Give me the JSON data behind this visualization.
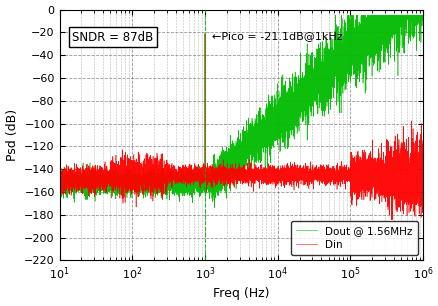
{
  "title": "",
  "xlabel": "Freq (Hz)",
  "ylabel": "Psd (dB)",
  "xlim_log": [
    10,
    1000000
  ],
  "ylim": [
    -220,
    0
  ],
  "yticks": [
    0,
    -20,
    -40,
    -60,
    -80,
    -100,
    -120,
    -140,
    -160,
    -180,
    -200,
    -220
  ],
  "sndr_text": "SNDR = 87dB",
  "pico_text": "←Pico = -21.1dB@1kHz",
  "pico_freq": 1000,
  "pico_db": -21.1,
  "din_color": "#ff0000",
  "dout_color": "#00bb00",
  "din_label": "Din",
  "dout_label": "Dout @ 1.56MHz",
  "signal_freq": 1000,
  "signal_amplitude": -21.1,
  "background_color": "#ffffff",
  "grid_color": "#555555",
  "grid_style": "--",
  "din_floor": -145,
  "dout_floor_low": -152,
  "dout_rise_start_freq": 1000,
  "dout_order": 3,
  "fs": 1560000
}
